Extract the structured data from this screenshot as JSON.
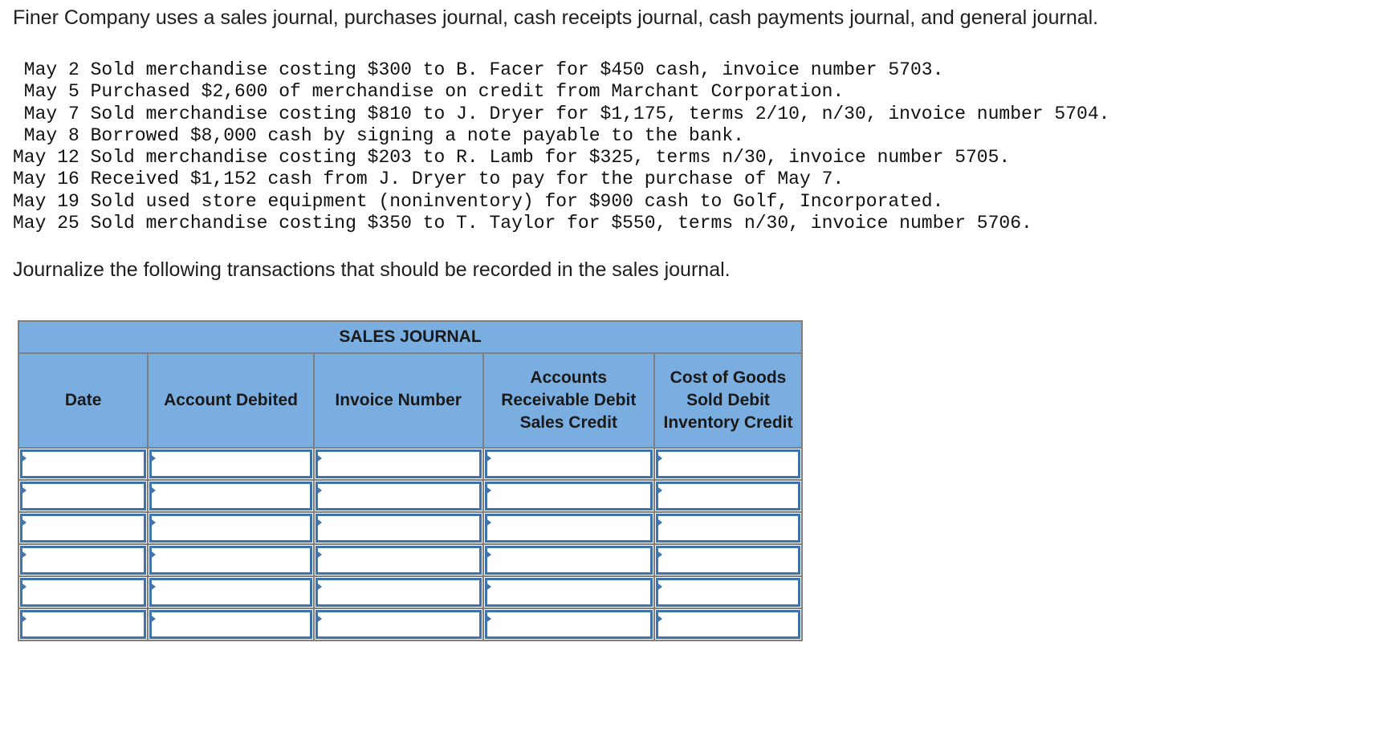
{
  "intro": "Finer Company uses a sales journal, purchases journal, cash receipts journal, cash payments journal, and general journal.",
  "transactions": [
    " May 2 Sold merchandise costing $300 to B. Facer for $450 cash, invoice number 5703.",
    " May 5 Purchased $2,600 of merchandise on credit from Marchant Corporation.",
    " May 7 Sold merchandise costing $810 to J. Dryer for $1,175, terms 2/10, n/30, invoice number 5704.",
    " May 8 Borrowed $8,000 cash by signing a note payable to the bank.",
    "May 12 Sold merchandise costing $203 to R. Lamb for $325, terms n/30, invoice number 5705.",
    "May 16 Received $1,152 cash from J. Dryer to pay for the purchase of May 7.",
    "May 19 Sold used store equipment (noninventory) for $900 cash to Golf, Incorporated.",
    "May 25 Sold merchandise costing $350 to T. Taylor for $550, terms n/30, invoice number 5706."
  ],
  "instruction": "Journalize the following transactions that should be recorded in the sales journal.",
  "journal": {
    "title": "SALES JOURNAL",
    "columns": [
      "Date",
      "Account Debited",
      "Invoice Number",
      "Accounts Receivable Debit Sales Credit",
      "Cost of Goods Sold Debit Inventory Credit"
    ],
    "rows": 6,
    "colors": {
      "header": "#7aade0",
      "input_border": "#3f73ad"
    }
  }
}
